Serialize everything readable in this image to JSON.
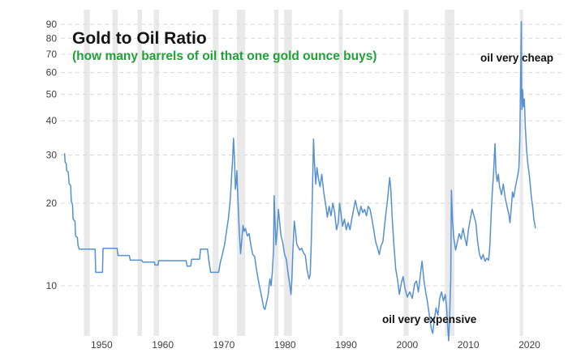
{
  "header": {
    "title": "Gold to Oil Ratio",
    "subtitle": "(how many barrels of oil that one gold ounce buys)"
  },
  "annotations": {
    "cheap": "oil very cheap",
    "expensive": "oil very expensive"
  },
  "colors": {
    "line": "#5590d2",
    "subtitle_green": "#21a038",
    "title_text": "#141414",
    "annotation_text": "#111111",
    "recession_band": "#e9e9e9",
    "gridline": "#d9d9d9",
    "tick_text": "#404040",
    "background": "#ffffff"
  },
  "chart_data": {
    "type": "line",
    "title": "Gold to Oil Ratio",
    "subtitle": "(how many barrels of oil that one gold ounce buys)",
    "xlabel": "",
    "ylabel": "",
    "y_scale": "log",
    "grid": "horizontal-dashed",
    "legend": "none",
    "xlim": [
      1945.09,
      2027.16
    ],
    "ylim": [
      6.56,
      101.7
    ],
    "x_ticks": [
      1950,
      1960,
      1970,
      1980,
      1990,
      2000,
      2010,
      2020
    ],
    "y_ticks": [
      10,
      20,
      30,
      40,
      50,
      60,
      70,
      80,
      90
    ],
    "recession_bands": [
      [
        1948.85,
        1949.85
      ],
      [
        1953.55,
        1954.4
      ],
      [
        1957.65,
        1958.35
      ],
      [
        1960.3,
        1961.15
      ],
      [
        1969.95,
        1970.9
      ],
      [
        1973.9,
        1975.25
      ],
      [
        1980.0,
        1980.7
      ],
      [
        1981.6,
        1982.9
      ],
      [
        1990.6,
        1991.2
      ],
      [
        2001.2,
        2002.0
      ],
      [
        2007.95,
        2009.5
      ],
      [
        2020.2,
        2020.75
      ]
    ],
    "series": [
      {
        "name": "Gold to Oil Ratio",
        "points": [
          [
            1945.7,
            30.3
          ],
          [
            1945.8,
            28.2
          ],
          [
            1945.95,
            28.0
          ],
          [
            1946.05,
            26.3
          ],
          [
            1946.3,
            26.0
          ],
          [
            1946.45,
            23.6
          ],
          [
            1946.7,
            23.2
          ],
          [
            1946.8,
            20.3
          ],
          [
            1947.0,
            19.8
          ],
          [
            1947.1,
            17.5
          ],
          [
            1947.4,
            17.2
          ],
          [
            1947.5,
            15.2
          ],
          [
            1947.8,
            15.0
          ],
          [
            1947.9,
            14.0
          ],
          [
            1948.1,
            13.6
          ],
          [
            1950.7,
            13.6
          ],
          [
            1950.8,
            11.2
          ],
          [
            1951.9,
            11.2
          ],
          [
            1952.0,
            13.7
          ],
          [
            1954.3,
            13.7
          ],
          [
            1954.45,
            12.9
          ],
          [
            1956.3,
            12.9
          ],
          [
            1956.45,
            12.4
          ],
          [
            1958.3,
            12.4
          ],
          [
            1958.5,
            12.2
          ],
          [
            1960.4,
            12.2
          ],
          [
            1960.5,
            11.9
          ],
          [
            1961.0,
            11.9
          ],
          [
            1961.1,
            12.35
          ],
          [
            1965.6,
            12.35
          ],
          [
            1965.75,
            11.8
          ],
          [
            1966.35,
            11.8
          ],
          [
            1966.5,
            12.5
          ],
          [
            1967.8,
            12.5
          ],
          [
            1967.95,
            13.6
          ],
          [
            1969.1,
            13.6
          ],
          [
            1969.3,
            12.4
          ],
          [
            1969.6,
            11.2
          ],
          [
            1970.9,
            11.2
          ],
          [
            1971.2,
            12.2
          ],
          [
            1971.6,
            13.2
          ],
          [
            1971.9,
            14.2
          ],
          [
            1972.2,
            15.8
          ],
          [
            1972.5,
            17.5
          ],
          [
            1972.8,
            20.5
          ],
          [
            1973.0,
            24.5
          ],
          [
            1973.2,
            29.0
          ],
          [
            1973.35,
            34.5
          ],
          [
            1973.5,
            29.5
          ],
          [
            1973.65,
            22.5
          ],
          [
            1973.8,
            24.0
          ],
          [
            1973.9,
            26.3
          ],
          [
            1974.1,
            20.0
          ],
          [
            1974.3,
            15.5
          ],
          [
            1974.5,
            13.1
          ],
          [
            1974.7,
            14.8
          ],
          [
            1974.9,
            16.6
          ],
          [
            1975.1,
            15.8
          ],
          [
            1975.3,
            16.2
          ],
          [
            1975.6,
            15.2
          ],
          [
            1975.9,
            15.5
          ],
          [
            1976.2,
            14.0
          ],
          [
            1976.5,
            13.0
          ],
          [
            1976.8,
            12.8
          ],
          [
            1977.1,
            11.5
          ],
          [
            1977.4,
            10.5
          ],
          [
            1977.7,
            9.7
          ],
          [
            1978.0,
            9.0
          ],
          [
            1978.3,
            8.3
          ],
          [
            1978.5,
            8.2
          ],
          [
            1978.7,
            8.6
          ],
          [
            1979.0,
            9.2
          ],
          [
            1979.3,
            10.6
          ],
          [
            1979.5,
            10.0
          ],
          [
            1979.7,
            11.2
          ],
          [
            1979.9,
            13.5
          ],
          [
            1980.0,
            21.3
          ],
          [
            1980.15,
            17.0
          ],
          [
            1980.3,
            14.1
          ],
          [
            1980.5,
            16.0
          ],
          [
            1980.7,
            19.0
          ],
          [
            1980.9,
            17.0
          ],
          [
            1981.1,
            15.3
          ],
          [
            1981.4,
            14.4
          ],
          [
            1981.7,
            13.0
          ],
          [
            1982.0,
            12.5
          ],
          [
            1982.3,
            11.0
          ],
          [
            1982.6,
            9.9
          ],
          [
            1982.75,
            9.3
          ],
          [
            1982.9,
            10.5
          ],
          [
            1983.1,
            14.0
          ],
          [
            1983.3,
            17.2
          ],
          [
            1983.5,
            15.8
          ],
          [
            1983.7,
            14.2
          ],
          [
            1983.9,
            13.9
          ],
          [
            1984.2,
            13.5
          ],
          [
            1984.5,
            13.7
          ],
          [
            1984.8,
            13.2
          ],
          [
            1985.1,
            12.9
          ],
          [
            1985.4,
            11.4
          ],
          [
            1985.7,
            10.6
          ],
          [
            1985.9,
            11.0
          ],
          [
            1986.1,
            15.0
          ],
          [
            1986.3,
            24.0
          ],
          [
            1986.45,
            34.3
          ],
          [
            1986.6,
            28.0
          ],
          [
            1986.8,
            23.5
          ],
          [
            1987.0,
            27.0
          ],
          [
            1987.2,
            25.0
          ],
          [
            1987.5,
            23.0
          ],
          [
            1987.8,
            25.5
          ],
          [
            1988.1,
            22.0
          ],
          [
            1988.4,
            20.0
          ],
          [
            1988.7,
            17.8
          ],
          [
            1989.0,
            19.5
          ],
          [
            1989.3,
            18.0
          ],
          [
            1989.6,
            20.0
          ],
          [
            1989.9,
            18.5
          ],
          [
            1990.2,
            16.0
          ],
          [
            1990.5,
            17.0
          ],
          [
            1990.7,
            20.0
          ],
          [
            1990.9,
            18.5
          ],
          [
            1991.2,
            16.5
          ],
          [
            1991.5,
            17.5
          ],
          [
            1991.8,
            16.0
          ],
          [
            1992.1,
            17.0
          ],
          [
            1992.4,
            16.0
          ],
          [
            1992.7,
            17.5
          ],
          [
            1993.0,
            19.0
          ],
          [
            1993.3,
            20.5
          ],
          [
            1993.6,
            19.0
          ],
          [
            1993.9,
            18.0
          ],
          [
            1994.2,
            19.5
          ],
          [
            1994.5,
            18.5
          ],
          [
            1994.8,
            19.0
          ],
          [
            1995.1,
            18.0
          ],
          [
            1995.4,
            19.5
          ],
          [
            1995.7,
            19.0
          ],
          [
            1996.0,
            17.5
          ],
          [
            1996.3,
            16.0
          ],
          [
            1996.6,
            14.5
          ],
          [
            1996.9,
            13.8
          ],
          [
            1997.2,
            13.0
          ],
          [
            1997.5,
            14.0
          ],
          [
            1997.8,
            14.5
          ],
          [
            1998.0,
            16.0
          ],
          [
            1998.3,
            18.5
          ],
          [
            1998.6,
            21.0
          ],
          [
            1998.9,
            24.8
          ],
          [
            1999.1,
            22.5
          ],
          [
            1999.3,
            18.0
          ],
          [
            1999.6,
            14.0
          ],
          [
            1999.9,
            11.5
          ],
          [
            2000.2,
            10.5
          ],
          [
            2000.5,
            9.3
          ],
          [
            2000.8,
            10.2
          ],
          [
            2001.1,
            10.8
          ],
          [
            2001.4,
            9.8
          ],
          [
            2001.8,
            9.1
          ],
          [
            2002.2,
            9.5
          ],
          [
            2002.6,
            9.0
          ],
          [
            2003.0,
            10.2
          ],
          [
            2003.3,
            10.4
          ],
          [
            2003.6,
            9.5
          ],
          [
            2003.9,
            10.8
          ],
          [
            2004.2,
            12.3
          ],
          [
            2004.5,
            10.5
          ],
          [
            2004.8,
            9.5
          ],
          [
            2005.1,
            8.7
          ],
          [
            2005.4,
            7.8
          ],
          [
            2005.7,
            7.0
          ],
          [
            2005.95,
            6.7
          ],
          [
            2006.2,
            7.5
          ],
          [
            2006.5,
            8.3
          ],
          [
            2006.8,
            7.8
          ],
          [
            2007.1,
            9.0
          ],
          [
            2007.4,
            9.5
          ],
          [
            2007.7,
            8.8
          ],
          [
            2008.0,
            9.3
          ],
          [
            2008.2,
            8.5
          ],
          [
            2008.4,
            7.2
          ],
          [
            2008.55,
            6.3
          ],
          [
            2008.7,
            7.5
          ],
          [
            2008.9,
            10.5
          ],
          [
            2009.0,
            22.3
          ],
          [
            2009.2,
            17.0
          ],
          [
            2009.4,
            14.9
          ],
          [
            2009.7,
            13.5
          ],
          [
            2010.0,
            14.5
          ],
          [
            2010.3,
            15.5
          ],
          [
            2010.6,
            14.8
          ],
          [
            2010.9,
            16.2
          ],
          [
            2011.2,
            15.0
          ],
          [
            2011.5,
            14.0
          ],
          [
            2011.8,
            16.0
          ],
          [
            2012.1,
            17.5
          ],
          [
            2012.4,
            19.0
          ],
          [
            2012.7,
            18.0
          ],
          [
            2013.0,
            17.0
          ],
          [
            2013.3,
            14.5
          ],
          [
            2013.6,
            13.0
          ],
          [
            2013.9,
            12.5
          ],
          [
            2014.2,
            13.0
          ],
          [
            2014.5,
            12.3
          ],
          [
            2014.8,
            12.6
          ],
          [
            2015.1,
            12.4
          ],
          [
            2015.3,
            14.0
          ],
          [
            2015.5,
            18.0
          ],
          [
            2015.7,
            22.0
          ],
          [
            2015.9,
            25.6
          ],
          [
            2016.05,
            30.0
          ],
          [
            2016.15,
            33.0
          ],
          [
            2016.3,
            26.0
          ],
          [
            2016.5,
            24.0
          ],
          [
            2016.7,
            25.5
          ],
          [
            2016.9,
            23.0
          ],
          [
            2017.2,
            21.5
          ],
          [
            2017.5,
            23.5
          ],
          [
            2017.8,
            21.0
          ],
          [
            2018.1,
            19.5
          ],
          [
            2018.4,
            18.3
          ],
          [
            2018.6,
            17.0
          ],
          [
            2018.8,
            19.0
          ],
          [
            2019.0,
            22.0
          ],
          [
            2019.2,
            21.0
          ],
          [
            2019.5,
            23.0
          ],
          [
            2019.9,
            25.5
          ],
          [
            2020.05,
            27.0
          ],
          [
            2020.2,
            34.0
          ],
          [
            2020.45,
            92.0
          ],
          [
            2020.5,
            50.0
          ],
          [
            2020.55,
            44.0
          ],
          [
            2020.65,
            52.0
          ],
          [
            2020.8,
            45.0
          ],
          [
            2020.95,
            48.0
          ],
          [
            2021.1,
            38.0
          ],
          [
            2021.3,
            31.5
          ],
          [
            2021.5,
            28.0
          ],
          [
            2021.7,
            26.0
          ],
          [
            2021.9,
            23.5
          ],
          [
            2022.1,
            21.0
          ],
          [
            2022.3,
            19.5
          ],
          [
            2022.5,
            17.5
          ],
          [
            2022.75,
            16.3
          ]
        ]
      }
    ]
  }
}
